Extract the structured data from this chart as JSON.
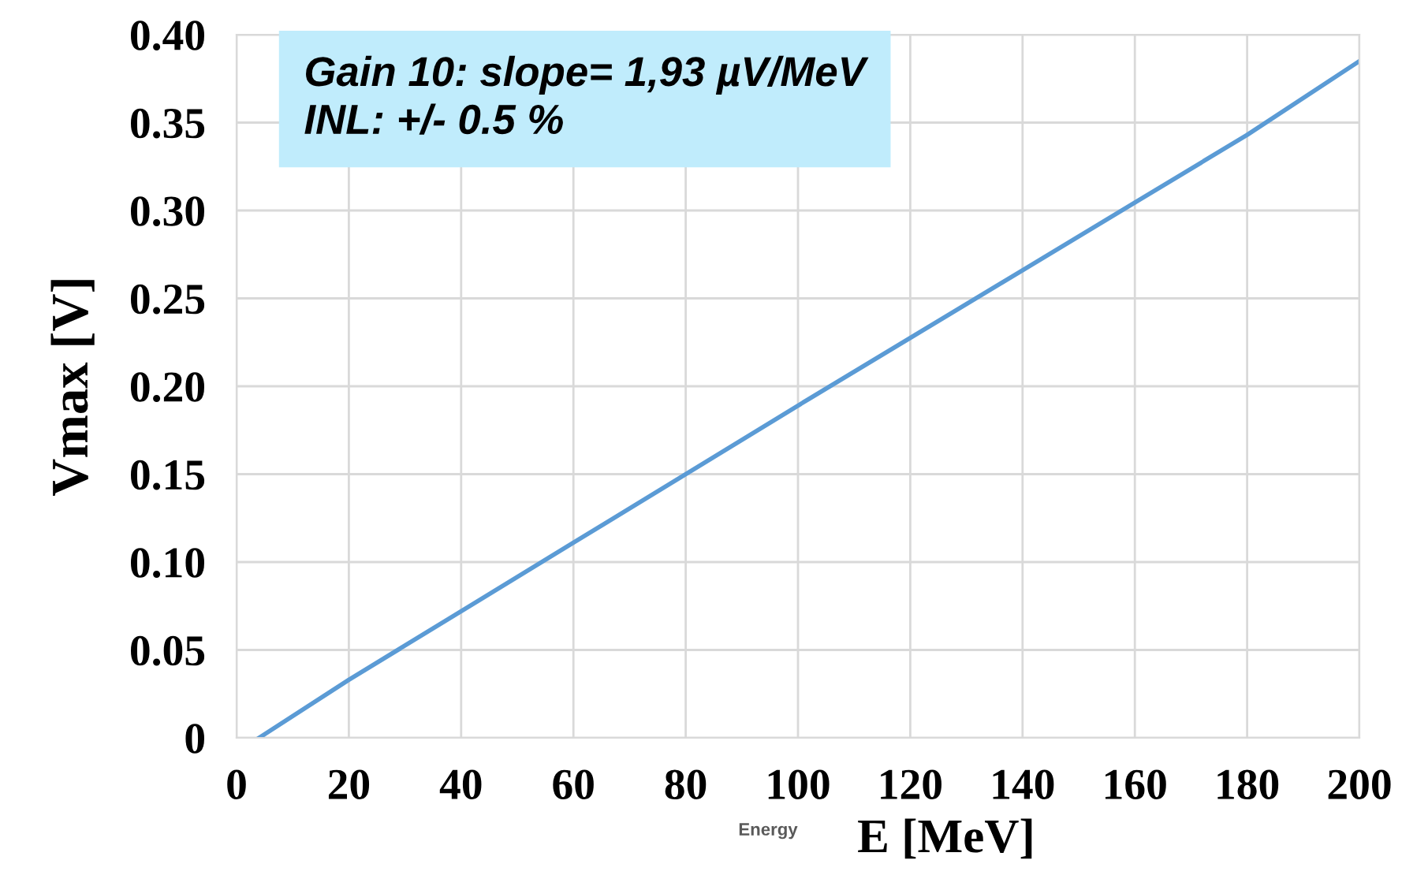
{
  "chart_data": {
    "type": "line",
    "xlabel": "E [MeV]",
    "ylabel": "Vmax [V]",
    "x": [
      4,
      20,
      60,
      100,
      140,
      180,
      200
    ],
    "series": [
      {
        "color": "#5b9bd5",
        "values": [
          0,
          0.033,
          0.111,
          0.189,
          0.266,
          0.343,
          0.385
        ]
      }
    ],
    "xlim": [
      0,
      200
    ],
    "xticks": [
      0,
      20,
      40,
      60,
      80,
      100,
      120,
      140,
      160,
      180,
      200
    ],
    "ylim": [
      0,
      0.4
    ],
    "yticks": [
      0,
      0.05,
      {
        "value": 0.1,
        "label": "0.10"
      },
      0.15,
      {
        "value": 0.2,
        "label": "0.20"
      },
      0.25,
      {
        "value": 0.3,
        "label": "0.30"
      },
      0.35,
      {
        "value": 0.4,
        "label": "0.40"
      }
    ],
    "grid": true,
    "legend": false,
    "marker": "none",
    "line_style": "solid",
    "annotations": [
      "Gain 10: slope= 1,93 µV/MeV\nINL: +/- 0.5 %",
      "Energy"
    ]
  }
}
